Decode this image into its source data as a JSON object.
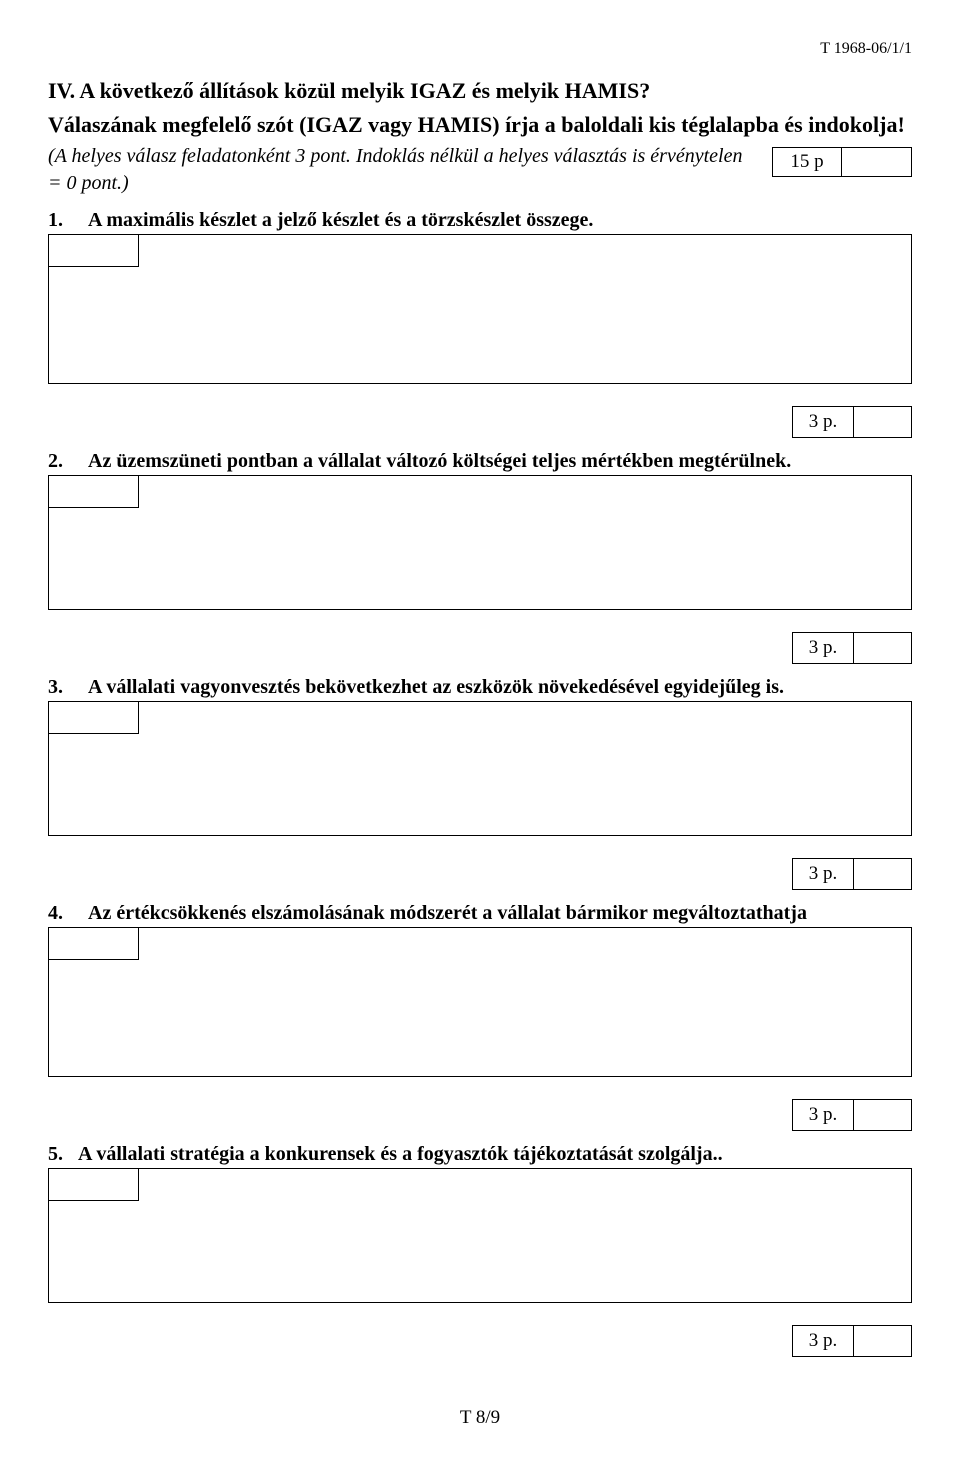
{
  "header_code": "T 1968-06/1/1",
  "section_title_line1": "IV. A következő állítások közül melyik IGAZ és melyik HAMIS?",
  "section_title_line2": "Válaszának megfelelő szót (IGAZ vagy HAMIS) írja a baloldali kis téglalapba és indokolja!",
  "intro_italic": "(A helyes válasz feladatonként 3 pont. Indoklás nélkül a helyes választás is érvénytelen = 0 pont.)",
  "total_points": "15 p",
  "questions": [
    {
      "num": "1.",
      "text": "A maximális készlet a jelző készlet és a törzskészlet összege.",
      "points": "3 p.",
      "justify": false
    },
    {
      "num": "2.",
      "text": "Az üzemszüneti pontban a vállalat változó költségei teljes mértékben megtérülnek.",
      "points": "3 p.",
      "justify": true
    },
    {
      "num": "3.",
      "text": "A vállalati vagyonvesztés bekövetkezhet az eszközök növekedésével egyidejűleg is.",
      "points": "3 p.",
      "justify": false
    },
    {
      "num": "4.",
      "text": "Az értékcsökkenés elszámolásának módszerét a vállalat bármikor megváltoztathatja",
      "points": "3 p.",
      "justify": true
    },
    {
      "num": "5.",
      "text": "A vállalati stratégia a konkurensek és a fogyasztók tájékoztatását szolgálja..",
      "points": "3 p.",
      "justify": false
    }
  ],
  "footer": "T 8/9"
}
